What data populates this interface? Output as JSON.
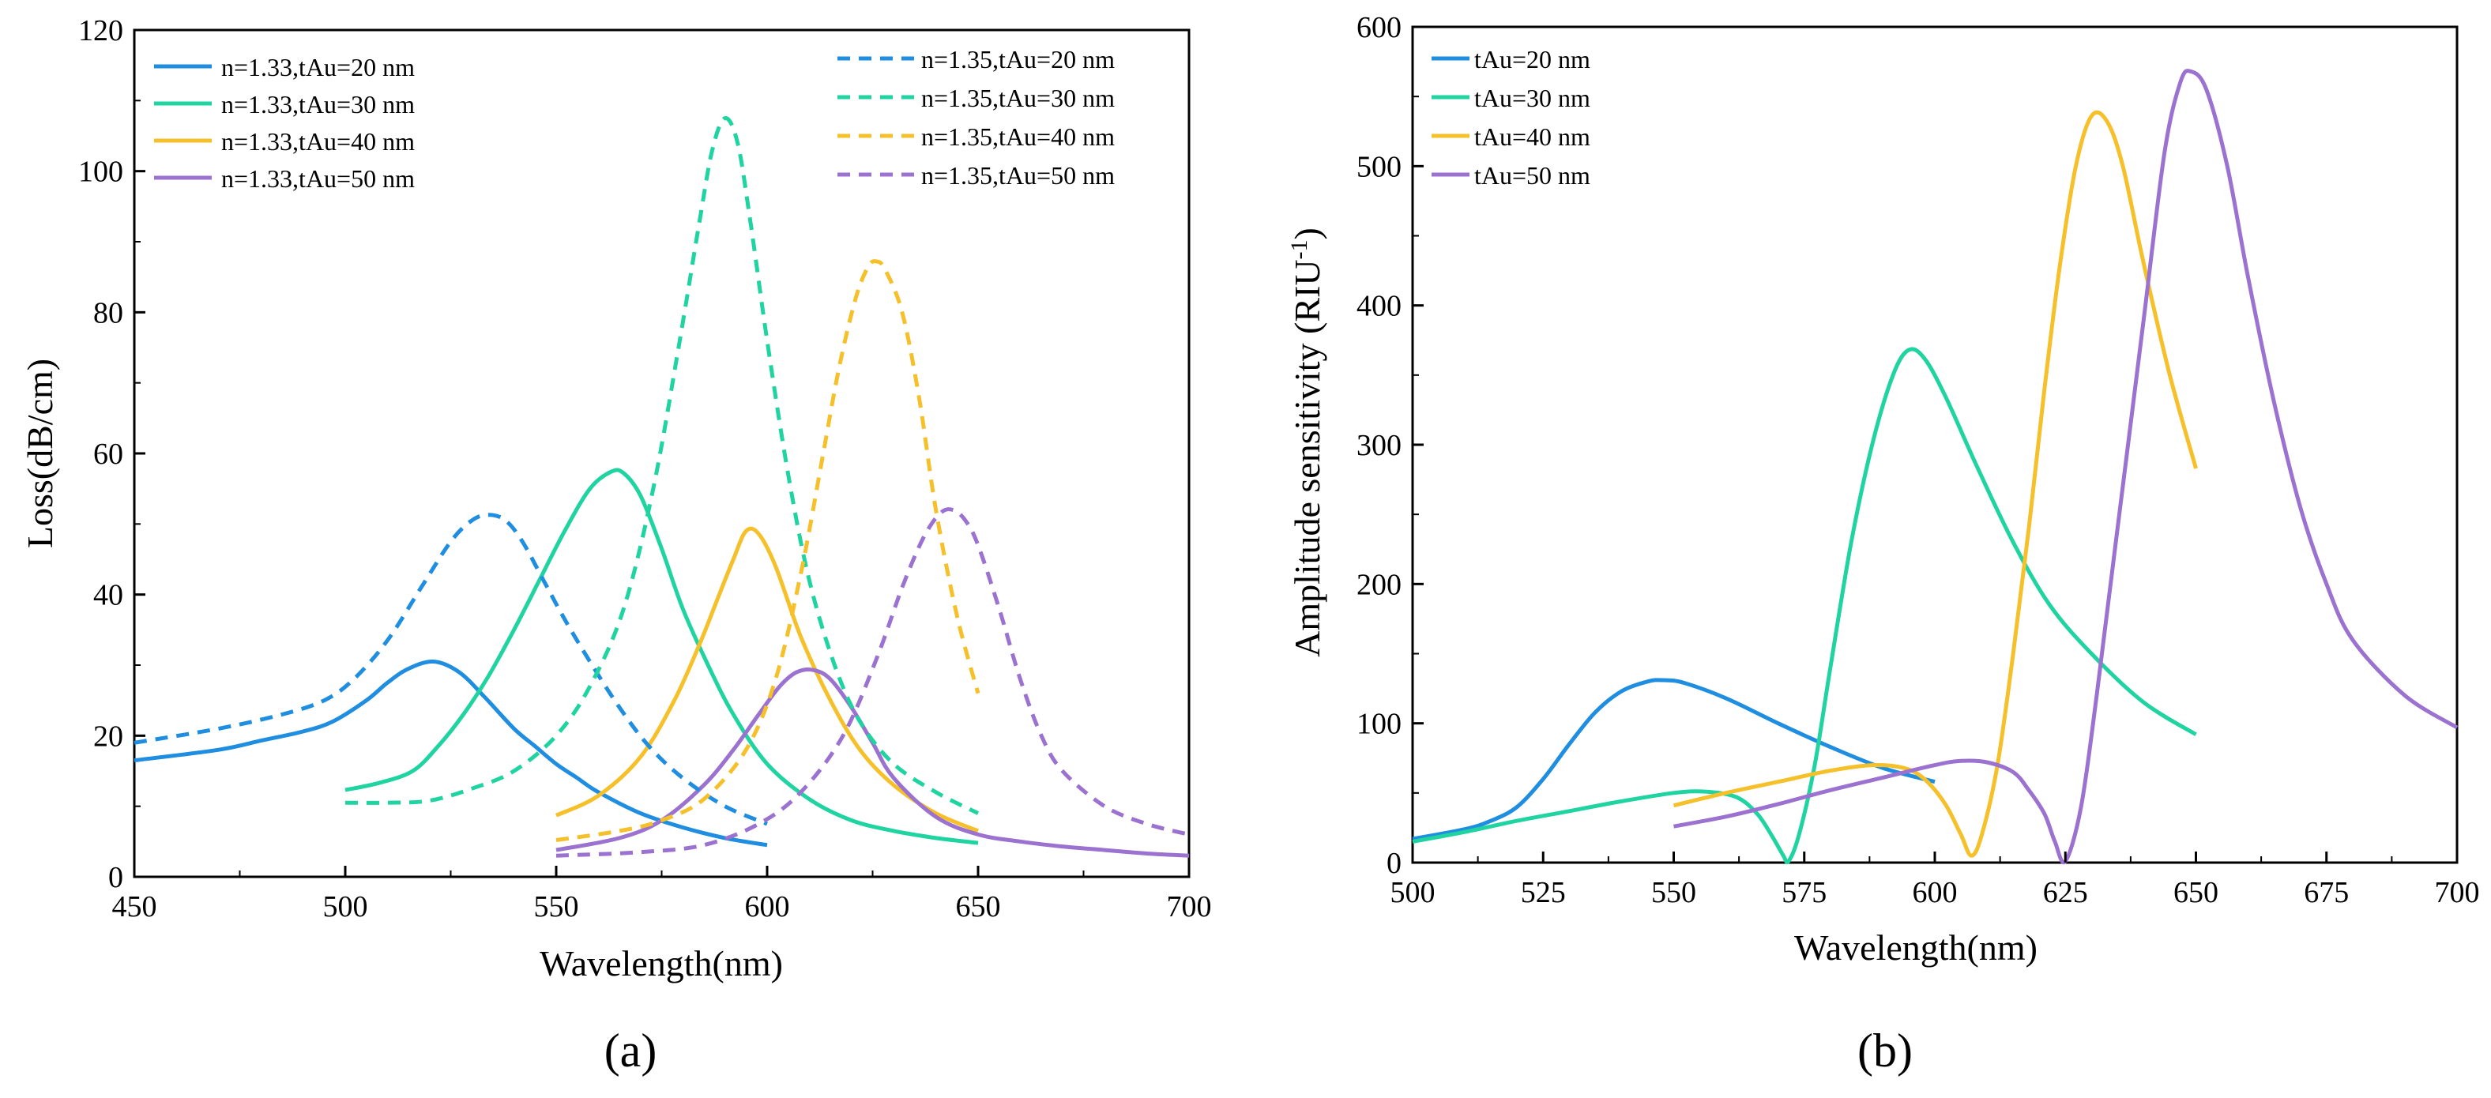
{
  "chart_data": [
    {
      "panel": "(a)",
      "type": "line",
      "xlabel": "Wavelength(nm)",
      "ylabel": "Loss(dB/cm)",
      "xlim": [
        450,
        700
      ],
      "ylim": [
        0,
        120
      ],
      "xticks": [
        450,
        500,
        550,
        600,
        650,
        700
      ],
      "yticks": [
        0,
        20,
        40,
        60,
        80,
        100,
        120
      ],
      "grid": false,
      "legend": [
        {
          "placement": "top-left",
          "entries": [
            "n=1.33,tAu=20 nm",
            "n=1.33,tAu=30 nm",
            "n=1.33,tAu=40 nm",
            "n=1.33,tAu=50 nm"
          ]
        },
        {
          "placement": "top-right",
          "entries": [
            "n=1.35,tAu=20 nm",
            "n=1.35,tAu=30 nm",
            "n=1.35,tAu=40 nm",
            "n=1.35,tAu=50 nm"
          ]
        }
      ],
      "series": [
        {
          "name": "n=1.33,tAu=20 nm",
          "color": "#1f8ee0",
          "dash": false,
          "x": [
            450,
            470,
            480,
            490,
            497,
            505,
            510,
            515,
            521,
            527,
            533,
            540,
            545,
            550,
            555,
            560,
            570,
            580,
            590,
            600
          ],
          "y": [
            16.5,
            18,
            19.3,
            20.6,
            22,
            25,
            27.5,
            29.5,
            30.5,
            29,
            25.5,
            21,
            18.5,
            16,
            14,
            12,
            9,
            7,
            5.5,
            4.5
          ]
        },
        {
          "name": "n=1.33,tAu=30 nm",
          "color": "#1fd4a0",
          "dash": false,
          "x": [
            500,
            508,
            516,
            522,
            528,
            534,
            540,
            546,
            552,
            558,
            563,
            566,
            570,
            575,
            580,
            586,
            592,
            600,
            610,
            620,
            630,
            640,
            650
          ],
          "y": [
            12.3,
            13.3,
            15,
            18.5,
            23,
            28.5,
            35,
            42,
            49,
            55,
            57.4,
            57.2,
            54,
            46.5,
            38,
            30,
            23,
            16,
            11,
            8,
            6.5,
            5.5,
            4.8
          ]
        },
        {
          "name": "n=1.33,tAu=40 nm",
          "color": "#f5c02a",
          "dash": false,
          "x": [
            550,
            560,
            570,
            578,
            584,
            588,
            592,
            595,
            598,
            602,
            608,
            615,
            622,
            630,
            640,
            650
          ],
          "y": [
            8.7,
            11.5,
            17,
            25,
            33,
            39,
            45,
            49,
            48.6,
            44,
            34,
            25,
            18,
            13,
            9,
            6.5
          ]
        },
        {
          "name": "n=1.33,tAu=50 nm",
          "color": "#9b72d0",
          "dash": false,
          "x": [
            550,
            565,
            575,
            585,
            592,
            598,
            603,
            607,
            611,
            615,
            620,
            625,
            630,
            640,
            650,
            660,
            670,
            680,
            690,
            700
          ],
          "y": [
            3.8,
            5.5,
            8,
            13,
            18,
            23,
            27,
            29,
            29.3,
            28,
            24,
            19,
            14,
            8.5,
            6,
            5,
            4.3,
            3.8,
            3.3,
            3
          ]
        },
        {
          "name": "n=1.35,tAu=20 nm",
          "color": "#1f8ee0",
          "dash": true,
          "x": [
            450,
            470,
            485,
            495,
            502,
            510,
            518,
            525,
            530,
            534,
            538,
            542,
            547,
            552,
            558,
            565,
            572,
            580,
            590,
            600
          ],
          "y": [
            19,
            21,
            23,
            25,
            28,
            33.5,
            41,
            47.5,
            50.5,
            51.3,
            50.5,
            47.5,
            42,
            36.5,
            30.5,
            24,
            18.5,
            14,
            10,
            7.5
          ]
        },
        {
          "name": "n=1.35,tAu=30 nm",
          "color": "#1fd4a0",
          "dash": true,
          "x": [
            500,
            510,
            520,
            530,
            540,
            550,
            558,
            566,
            573,
            579,
            584,
            587,
            590,
            593,
            596,
            600,
            605,
            610,
            616,
            622,
            630,
            640,
            650
          ],
          "y": [
            10.5,
            10.5,
            10.8,
            12.5,
            15,
            20,
            27,
            38,
            55,
            75,
            93,
            103,
            107.5,
            104,
            93,
            76,
            57,
            42,
            30,
            22,
            16,
            12,
            9
          ]
        },
        {
          "name": "n=1.35,tAu=40 nm",
          "color": "#f5c02a",
          "dash": true,
          "x": [
            550,
            565,
            575,
            585,
            595,
            602,
            608,
            613,
            617,
            621,
            624,
            626,
            628,
            632,
            636,
            640,
            645,
            650
          ],
          "y": [
            5.2,
            6.5,
            8,
            11,
            18,
            28,
            43,
            59,
            72,
            82,
            86.5,
            87.2,
            86,
            80,
            68,
            52,
            37,
            26
          ]
        },
        {
          "name": "n=1.35,tAu=50 nm",
          "color": "#9b72d0",
          "dash": true,
          "x": [
            550,
            570,
            585,
            598,
            608,
            618,
            626,
            632,
            637,
            641,
            644,
            647,
            650,
            655,
            660,
            665,
            670,
            680,
            690,
            700
          ],
          "y": [
            3,
            3.5,
            4.5,
            7.5,
            12,
            20,
            31,
            41,
            48,
            51.5,
            52,
            50.5,
            47,
            38,
            28,
            20,
            15,
            10,
            7.5,
            6
          ]
        }
      ]
    },
    {
      "panel": "(b)",
      "type": "line",
      "xlabel": "Wavelength(nm)",
      "ylabel": "Amplitude sensitivity (RIU",
      "ylabel_sup": "-1",
      "ylabel_end": ")",
      "xlim": [
        500,
        700
      ],
      "ylim": [
        0,
        600
      ],
      "xticks": [
        500,
        525,
        550,
        575,
        600,
        625,
        650,
        675,
        700
      ],
      "yticks": [
        0,
        100,
        200,
        300,
        400,
        500,
        600
      ],
      "grid": false,
      "legend": [
        {
          "placement": "top-left",
          "entries": [
            "tAu=20 nm",
            "tAu=30 nm",
            "tAu=40 nm",
            "tAu=50 nm"
          ]
        }
      ],
      "series": [
        {
          "name": "tAu=20 nm",
          "color": "#1f8ee0",
          "dash": false,
          "x": [
            500,
            510,
            515,
            520,
            525,
            530,
            535,
            540,
            545,
            548,
            552,
            560,
            570,
            580,
            590,
            600
          ],
          "y": [
            17,
            24,
            30,
            40,
            60,
            85,
            108,
            123,
            130,
            131,
            129,
            118,
            100,
            83,
            68,
            58
          ]
        },
        {
          "name": "tAu=30 nm",
          "color": "#1fd4a0",
          "dash": false,
          "x": [
            500,
            510,
            520,
            530,
            540,
            550,
            556,
            562,
            566,
            569,
            571,
            572,
            574,
            577,
            580,
            584,
            588,
            592,
            595,
            598,
            602,
            608,
            615,
            622,
            630,
            640,
            650
          ],
          "y": [
            15,
            22,
            30,
            37,
            44,
            50,
            51,
            47,
            35,
            18,
            5,
            1,
            20,
            70,
            140,
            230,
            300,
            350,
            368,
            362,
            335,
            285,
            230,
            185,
            150,
            115,
            92
          ]
        },
        {
          "name": "tAu=40 nm",
          "color": "#f5c02a",
          "dash": false,
          "x": [
            550,
            560,
            570,
            580,
            588,
            594,
            598,
            602,
            605,
            607,
            609,
            612,
            615,
            618,
            621,
            624,
            627,
            630,
            633,
            636,
            640,
            645,
            650
          ],
          "y": [
            41,
            50,
            58,
            66,
            70,
            68,
            60,
            42,
            20,
            5,
            20,
            70,
            150,
            240,
            340,
            430,
            500,
            536,
            532,
            500,
            430,
            350,
            283
          ]
        },
        {
          "name": "tAu=50 nm",
          "color": "#9b72d0",
          "dash": false,
          "x": [
            550,
            560,
            570,
            580,
            590,
            600,
            605,
            610,
            615,
            618,
            621,
            623,
            625,
            628,
            631,
            635,
            640,
            644,
            647,
            649,
            652,
            656,
            660,
            665,
            670,
            675,
            680,
            690,
            700
          ],
          "y": [
            26,
            33,
            42,
            52,
            61,
            70,
            73,
            72,
            65,
            52,
            35,
            15,
            1,
            40,
            120,
            240,
            390,
            510,
            560,
            568,
            555,
            500,
            420,
            330,
            255,
            200,
            160,
            120,
            97
          ]
        }
      ]
    }
  ]
}
